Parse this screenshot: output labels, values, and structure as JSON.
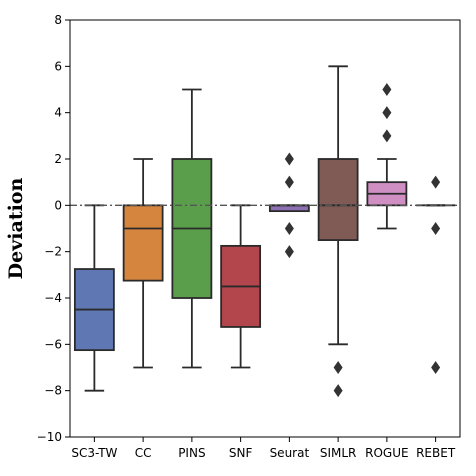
{
  "chart_data": {
    "type": "box",
    "title": "",
    "xlabel": "",
    "ylabel": "Deviation",
    "ylim": [
      -10,
      8
    ],
    "yticks": [
      -10,
      -8,
      -6,
      -4,
      -2,
      0,
      2,
      4,
      6,
      8
    ],
    "grid": false,
    "reference_line": {
      "y": 0,
      "style": "dash-dot",
      "color": "#555555"
    },
    "categories": [
      "SC3-TW",
      "CC",
      "PINS",
      "SNF",
      "Seurat",
      "SIMLR",
      "ROGUE",
      "REBET"
    ],
    "boxes": [
      {
        "name": "SC3-TW",
        "color": "#5f78b4",
        "whisker_low": -8,
        "q1": -6.25,
        "median": -4.5,
        "q3": -2.75,
        "whisker_high": 0,
        "outliers": []
      },
      {
        "name": "CC",
        "color": "#d6853f",
        "whisker_low": -7,
        "q1": -3.25,
        "median": -1,
        "q3": 0,
        "whisker_high": 2,
        "outliers": []
      },
      {
        "name": "PINS",
        "color": "#5a9e4b",
        "whisker_low": -7,
        "q1": -4,
        "median": -1,
        "q3": 2,
        "whisker_high": 5,
        "outliers": []
      },
      {
        "name": "SNF",
        "color": "#b2464c",
        "whisker_low": -7,
        "q1": -5.25,
        "median": -3.5,
        "q3": -1.75,
        "whisker_high": 0,
        "outliers": []
      },
      {
        "name": "Seurat",
        "color": "#8e6fb3",
        "whisker_low": -0.25,
        "q1": -0.25,
        "median": 0,
        "q3": 0,
        "whisker_high": 0,
        "outliers": [
          2,
          1,
          -1,
          -2
        ]
      },
      {
        "name": "SIMLR",
        "color": "#805a55",
        "whisker_low": -6,
        "q1": -1.5,
        "median": 0,
        "q3": 2,
        "whisker_high": 6,
        "outliers": [
          -7,
          -8
        ]
      },
      {
        "name": "ROGUE",
        "color": "#cf8fc3",
        "whisker_low": -1,
        "q1": 0,
        "median": 0.5,
        "q3": 1,
        "whisker_high": 2,
        "outliers": [
          3,
          4,
          5
        ]
      },
      {
        "name": "REBET",
        "color": "#8c8c8c",
        "whisker_low": 0,
        "q1": 0,
        "median": 0,
        "q3": 0,
        "whisker_high": 0,
        "outliers": [
          1,
          -1,
          -7
        ]
      }
    ]
  }
}
